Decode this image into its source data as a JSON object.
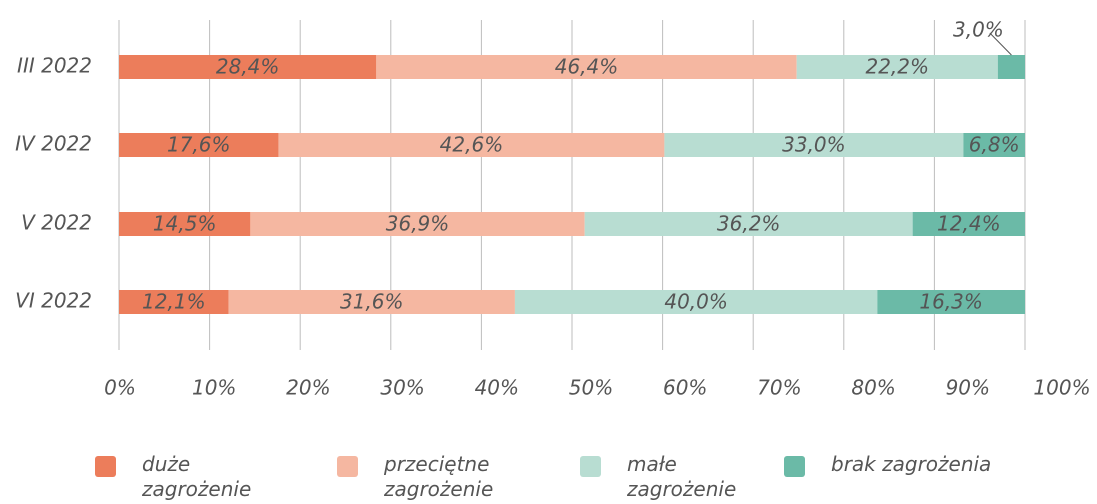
{
  "chart_data": {
    "type": "stacked-barh",
    "categories": [
      "III 2022",
      "IV 2022",
      "V 2022",
      "VI 2022"
    ],
    "series": [
      {
        "name": "duże zagrożenie",
        "color": "#ec7d5b",
        "values": [
          28.4,
          17.6,
          14.5,
          12.1
        ],
        "value_labels": [
          "28,4%",
          "17,6%",
          "14,5%",
          "12,1%"
        ]
      },
      {
        "name": "przeciętne zagrożenie",
        "color": "#f5b7a1",
        "values": [
          46.4,
          42.6,
          36.9,
          31.6
        ],
        "value_labels": [
          "46,4%",
          "42,6%",
          "36,9%",
          "31,6%"
        ]
      },
      {
        "name": "małe zagrożenie",
        "color": "#b8ddd2",
        "values": [
          22.2,
          33.0,
          36.2,
          40.0
        ],
        "value_labels": [
          "22,2%",
          "33,0%",
          "36,2%",
          "40,0%"
        ]
      },
      {
        "name": "brak zagrożenia",
        "color": "#6bbaa7",
        "values": [
          3.0,
          6.8,
          12.4,
          16.3
        ],
        "value_labels": [
          "3,0%",
          "6,8%",
          "12,4%",
          "16,3%"
        ]
      }
    ],
    "xlim": [
      0,
      100
    ],
    "xticks": [
      {
        "value": 0,
        "label": "0%"
      },
      {
        "value": 10,
        "label": "10%"
      },
      {
        "value": 20,
        "label": "20%"
      },
      {
        "value": 30,
        "label": "30%"
      },
      {
        "value": 40,
        "label": "40%"
      },
      {
        "value": 50,
        "label": "50%"
      },
      {
        "value": 60,
        "label": "60%"
      },
      {
        "value": 70,
        "label": "70%"
      },
      {
        "value": 80,
        "label": "80%"
      },
      {
        "value": 90,
        "label": "90%"
      },
      {
        "value": 100,
        "label": "100%"
      }
    ],
    "grid": true,
    "legend": "bottom"
  }
}
